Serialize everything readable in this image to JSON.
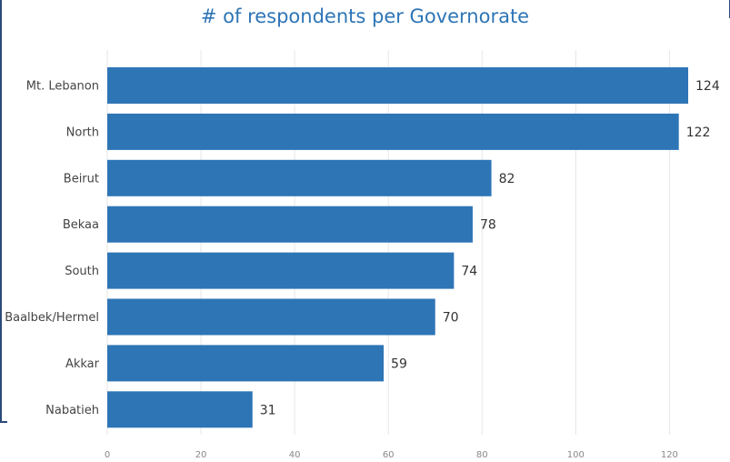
{
  "chart_data": {
    "type": "bar",
    "orientation": "horizontal",
    "title": "# of respondents per Governorate",
    "categories": [
      "Mt. Lebanon",
      "North",
      "Beirut",
      "Bekaa",
      "South",
      "Baalbek/Hermel",
      "Akkar",
      "Nabatieh"
    ],
    "values": [
      124,
      122,
      82,
      78,
      74,
      70,
      59,
      31
    ],
    "xlim": [
      0,
      124
    ],
    "xticks": [
      0,
      20,
      40,
      60,
      80,
      100,
      120
    ],
    "xlabel": "",
    "ylabel": "",
    "grid": true,
    "legend": "none",
    "bar_color": "#2e75b6",
    "title_color": "#2e75b6",
    "data_labels": true
  }
}
